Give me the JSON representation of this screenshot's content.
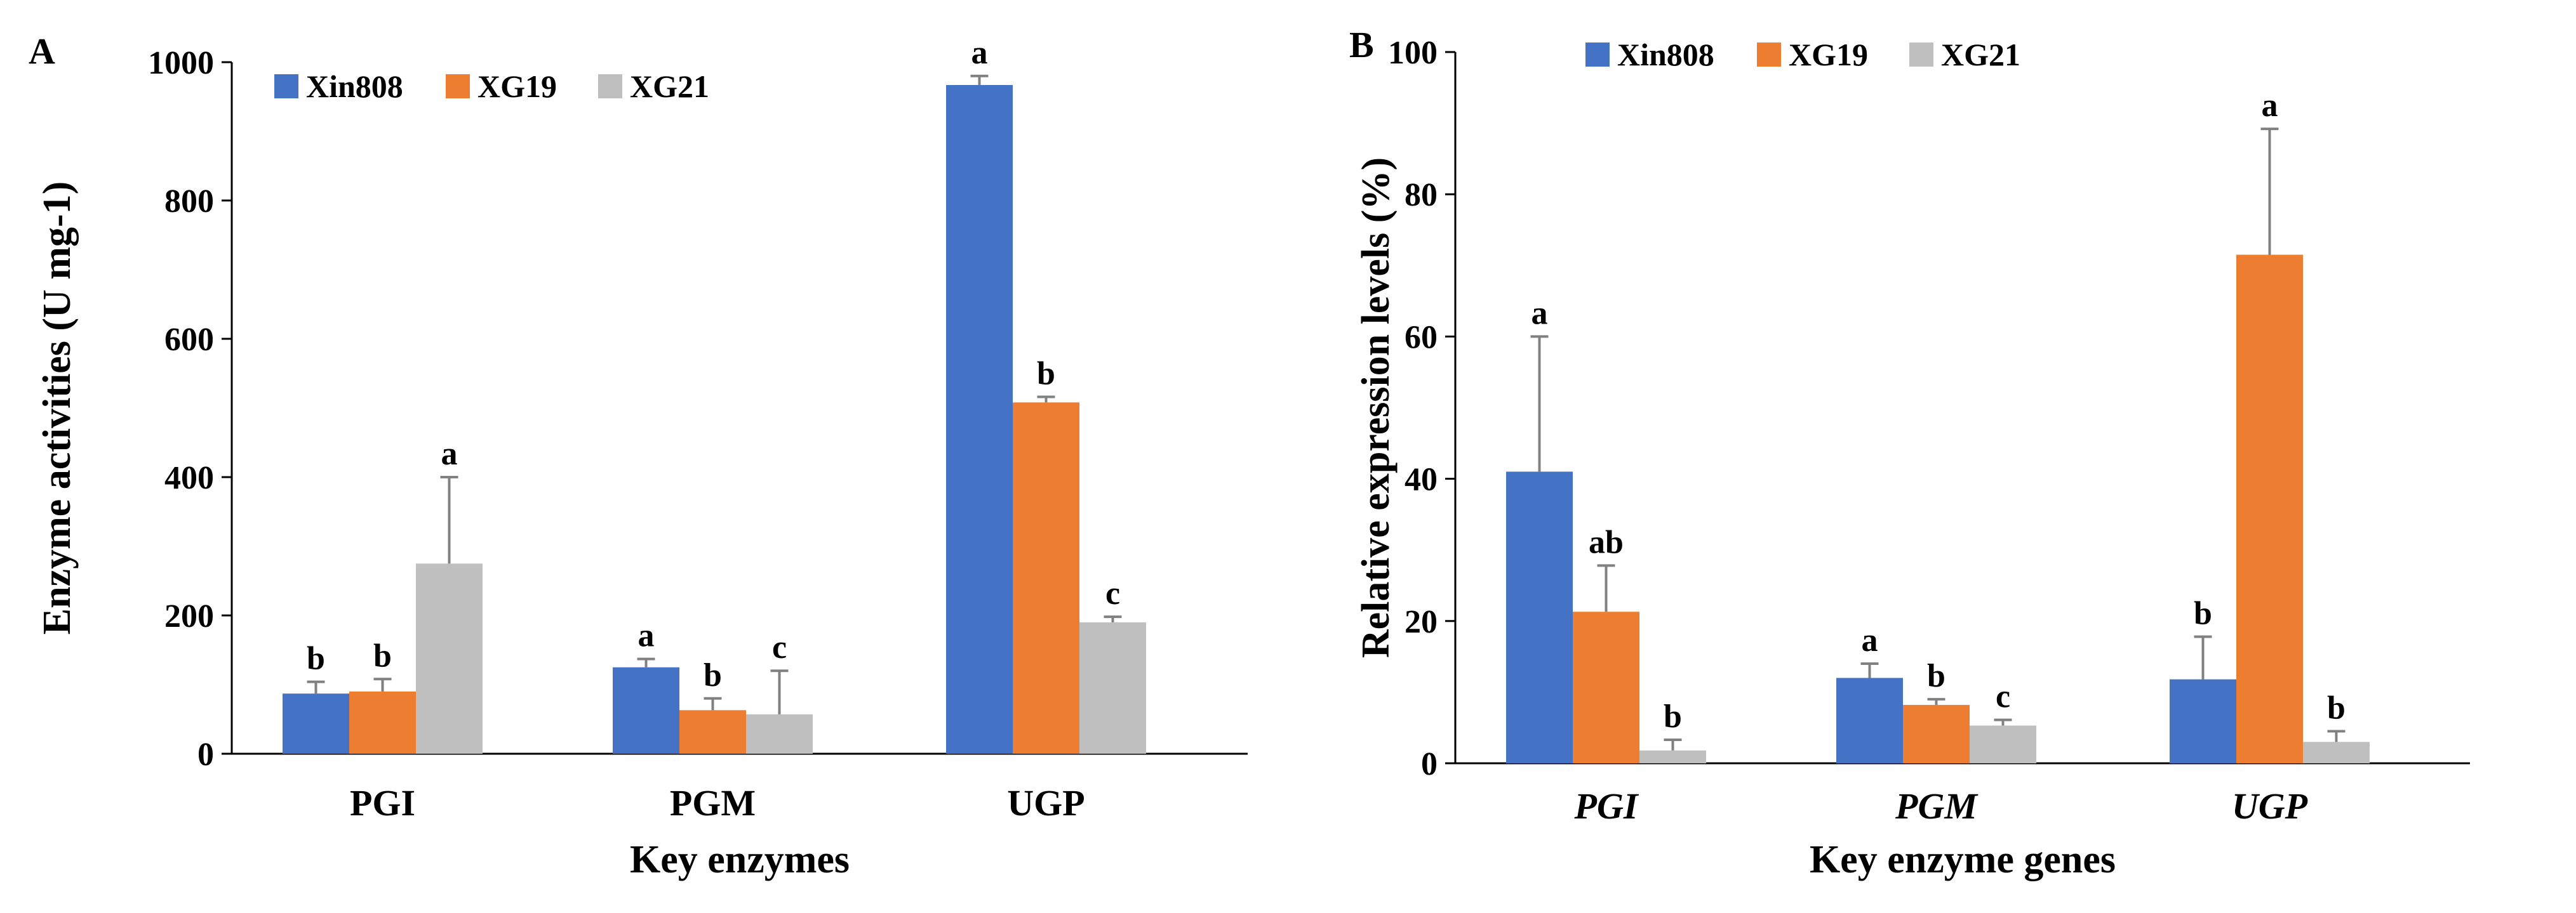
{
  "chart_data": [
    {
      "panel": "A",
      "type": "bar",
      "title": "",
      "xlabel": "Key enzymes",
      "ylabel": "Enzyme activities (U mg-1)",
      "ylim": [
        0,
        1000
      ],
      "yticks": [
        "0",
        "200",
        "400",
        "600",
        "800",
        "1000"
      ],
      "categories": [
        "PGI",
        "PGM",
        "UGP"
      ],
      "categories_italic": false,
      "legend_position": "top-left",
      "series": [
        {
          "name": "Xin808",
          "color": "#4472C4",
          "values": [
            87,
            125,
            967
          ],
          "errors": [
            17,
            12,
            13
          ],
          "letters": [
            "b",
            "a",
            "a"
          ]
        },
        {
          "name": "XG19",
          "color": "#ED7D31",
          "values": [
            90,
            63,
            508
          ],
          "errors": [
            18,
            17,
            8
          ],
          "letters": [
            "b",
            "b",
            "b"
          ]
        },
        {
          "name": "XG21",
          "color": "#BFBFBF",
          "values": [
            275,
            57,
            190
          ],
          "errors": [
            125,
            63,
            8
          ],
          "letters": [
            "a",
            "c",
            "c"
          ]
        }
      ]
    },
    {
      "panel": "B",
      "type": "bar",
      "title": "",
      "xlabel": "Key enzyme genes",
      "ylabel": "Relative expression levels (%)",
      "ylim": [
        0,
        100
      ],
      "yticks": [
        "0",
        "20",
        "40",
        "60",
        "80",
        "100"
      ],
      "categories": [
        "PGI",
        "PGM",
        "UGP"
      ],
      "categories_italic": true,
      "legend_position": "top-left",
      "series": [
        {
          "name": "Xin808",
          "color": "#4472C4",
          "values": [
            41,
            12,
            11.8
          ],
          "errors": [
            19,
            2,
            6
          ],
          "letters": [
            "a",
            "a",
            "b"
          ]
        },
        {
          "name": "XG19",
          "color": "#ED7D31",
          "values": [
            21.3,
            8.2,
            71.5
          ],
          "errors": [
            6.5,
            0.8,
            17.7
          ],
          "letters": [
            "ab",
            "b",
            "a"
          ]
        },
        {
          "name": "XG21",
          "color": "#BFBFBF",
          "values": [
            1.8,
            5.3,
            3
          ],
          "errors": [
            1.5,
            0.8,
            1.5
          ],
          "letters": [
            "b",
            "c",
            "b"
          ]
        }
      ]
    }
  ]
}
